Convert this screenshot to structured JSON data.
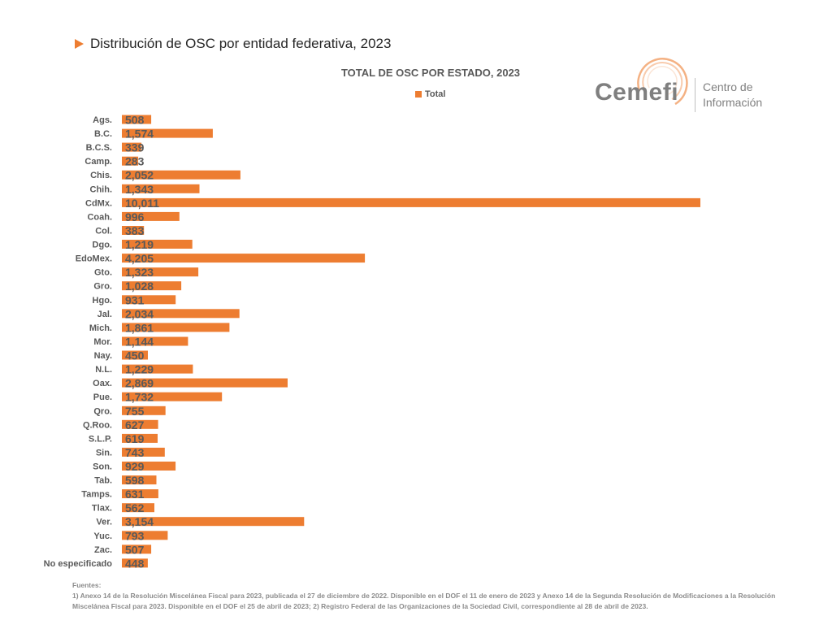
{
  "heading": "Distribución de OSC por entidad federativa, 2023",
  "logo": {
    "name": "Cemefi",
    "subtitle_line1": "Centro de",
    "subtitle_line2": "Información"
  },
  "colors": {
    "bar": "#ED7D31",
    "label": "#595959",
    "logo_accent": "#F4B183"
  },
  "chart_data": {
    "type": "bar",
    "orientation": "horizontal",
    "title": "TOTAL DE OSC POR ESTADO, 2023",
    "legend": "top",
    "grid": false,
    "xlim": [
      0,
      10500
    ],
    "series": [
      {
        "name": "Total"
      }
    ],
    "categories": [
      "Ags.",
      "B.C.",
      "B.C.S.",
      "Camp.",
      "Chis.",
      "Chih.",
      "CdMx.",
      "Coah.",
      "Col.",
      "Dgo.",
      "EdoMex.",
      "Gto.",
      "Gro.",
      "Hgo.",
      "Jal.",
      "Mich.",
      "Mor.",
      "Nay.",
      "N.L.",
      "Oax.",
      "Pue.",
      "Qro.",
      "Q.Roo.",
      "S.L.P.",
      "Sin.",
      "Son.",
      "Tab.",
      "Tamps.",
      "Tlax.",
      "Ver.",
      "Yuc.",
      "Zac.",
      "No especificado"
    ],
    "values": [
      508,
      1574,
      339,
      283,
      2052,
      1343,
      10011,
      996,
      383,
      1219,
      4205,
      1323,
      1028,
      931,
      2034,
      1861,
      1144,
      450,
      1229,
      2869,
      1732,
      755,
      627,
      619,
      743,
      929,
      598,
      631,
      562,
      3154,
      793,
      507,
      448
    ],
    "data_labels": [
      "508",
      "1,574",
      "339",
      "283",
      "2,052",
      "1,343",
      "10,011",
      "996",
      "383",
      "1,219",
      "4,205",
      "1,323",
      "1,028",
      "931",
      "2,034",
      "1,861",
      "1,144",
      "450",
      "1,229",
      "2,869",
      "1,732",
      "755",
      "627",
      "619",
      "743",
      "929",
      "598",
      "631",
      "562",
      "3,154",
      "793",
      "507",
      "448"
    ]
  },
  "footer": {
    "title": "Fuentes:",
    "text": "1) Anexo 14 de la Resolución Miscelánea Fiscal para 2023, publicada el 27 de diciembre de 2022. Disponible en el DOF el 11 de enero de 2023 y Anexo 14 de la Segunda Resolución de Modificaciones a la Resolución Miscelánea Fiscal para 2023. Disponible en el DOF el 25 de abril de 2023; 2) Registro Federal de las Organizaciones de la Sociedad Civil, correspondiente al 28 de abril de 2023."
  }
}
